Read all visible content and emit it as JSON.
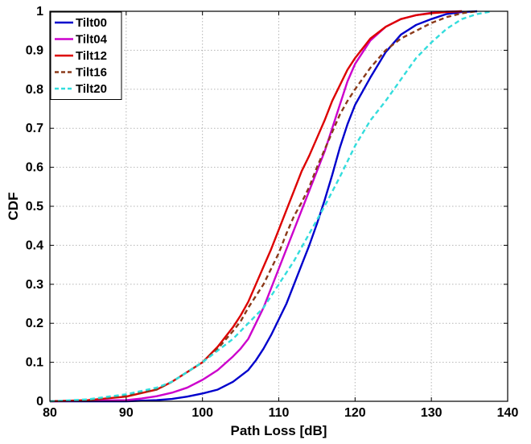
{
  "chart_data": {
    "type": "line",
    "title": "",
    "xlabel": "Path Loss [dB]",
    "ylabel": "CDF",
    "xlim": [
      80,
      140
    ],
    "ylim": [
      0,
      1
    ],
    "xticks": [
      "80",
      "90",
      "100",
      "110",
      "120",
      "130",
      "140"
    ],
    "yticks": [
      "0",
      "0.1",
      "0.2",
      "0.3",
      "0.4",
      "0.5",
      "0.6",
      "0.7",
      "0.8",
      "0.9",
      "1"
    ],
    "grid": true,
    "legend_position": "top-left",
    "series": [
      {
        "name": "Tilt00",
        "color": "#0000cc",
        "dash": "solid",
        "x": [
          80,
          90,
          94,
          96,
          98,
          100,
          102,
          104,
          106,
          107,
          108,
          109,
          110,
          111,
          112,
          113,
          114,
          115,
          116,
          117,
          118,
          119,
          120,
          122,
          124,
          126,
          128,
          130,
          132,
          134,
          136
        ],
        "y": [
          0,
          0,
          0.003,
          0.006,
          0.012,
          0.02,
          0.03,
          0.05,
          0.08,
          0.105,
          0.135,
          0.17,
          0.21,
          0.25,
          0.3,
          0.35,
          0.4,
          0.455,
          0.515,
          0.58,
          0.65,
          0.71,
          0.76,
          0.83,
          0.895,
          0.94,
          0.965,
          0.98,
          0.993,
          0.998,
          1
        ]
      },
      {
        "name": "Tilt04",
        "color": "#cc00cc",
        "dash": "solid",
        "x": [
          80,
          90,
          92,
          94,
          96,
          98,
          100,
          102,
          104,
          105,
          106,
          107,
          108,
          109,
          110,
          111,
          112,
          113,
          114,
          115,
          116,
          117,
          118,
          119,
          120,
          122,
          124,
          126,
          128,
          130,
          132,
          134
        ],
        "y": [
          0,
          0.003,
          0.007,
          0.013,
          0.022,
          0.035,
          0.055,
          0.08,
          0.115,
          0.135,
          0.16,
          0.2,
          0.24,
          0.29,
          0.34,
          0.39,
          0.44,
          0.49,
          0.54,
          0.59,
          0.64,
          0.7,
          0.76,
          0.82,
          0.865,
          0.925,
          0.96,
          0.98,
          0.99,
          0.996,
          0.999,
          1
        ]
      },
      {
        "name": "Tilt12",
        "color": "#dd0000",
        "dash": "solid",
        "x": [
          80,
          85,
          90,
          94,
          96,
          98,
          100,
          101,
          102,
          103,
          104,
          105,
          106,
          107,
          108,
          109,
          110,
          111,
          112,
          113,
          114,
          115,
          116,
          117,
          118,
          119,
          120,
          122,
          124,
          126,
          128,
          130,
          132,
          134
        ],
        "y": [
          0,
          0.003,
          0.012,
          0.03,
          0.05,
          0.075,
          0.1,
          0.12,
          0.14,
          0.165,
          0.19,
          0.22,
          0.255,
          0.3,
          0.345,
          0.39,
          0.44,
          0.49,
          0.54,
          0.59,
          0.63,
          0.675,
          0.72,
          0.77,
          0.81,
          0.85,
          0.88,
          0.93,
          0.96,
          0.98,
          0.99,
          0.995,
          0.998,
          1
        ]
      },
      {
        "name": "Tilt16",
        "color": "#8b3a1a",
        "dash": "dashed",
        "x": [
          80,
          85,
          90,
          94,
          96,
          98,
          100,
          102,
          104,
          105,
          106,
          107,
          108,
          109,
          110,
          111,
          112,
          113,
          114,
          115,
          116,
          117,
          118,
          119,
          120,
          122,
          124,
          126,
          128,
          130,
          132,
          134,
          136
        ],
        "y": [
          0,
          0.003,
          0.015,
          0.03,
          0.05,
          0.075,
          0.1,
          0.135,
          0.18,
          0.205,
          0.24,
          0.27,
          0.3,
          0.34,
          0.38,
          0.43,
          0.475,
          0.51,
          0.55,
          0.6,
          0.645,
          0.69,
          0.735,
          0.77,
          0.8,
          0.855,
          0.9,
          0.93,
          0.95,
          0.97,
          0.985,
          0.995,
          1
        ]
      },
      {
        "name": "Tilt20",
        "color": "#33dddd",
        "dash": "dashed",
        "x": [
          80,
          85,
          90,
          94,
          96,
          98,
          100,
          102,
          104,
          106,
          108,
          110,
          112,
          114,
          116,
          118,
          120,
          122,
          124,
          126,
          128,
          130,
          132,
          134,
          136,
          138
        ],
        "y": [
          0,
          0.005,
          0.018,
          0.035,
          0.05,
          0.075,
          0.1,
          0.13,
          0.16,
          0.2,
          0.24,
          0.3,
          0.36,
          0.43,
          0.5,
          0.575,
          0.655,
          0.72,
          0.77,
          0.825,
          0.88,
          0.92,
          0.955,
          0.98,
          0.993,
          1
        ]
      }
    ]
  }
}
